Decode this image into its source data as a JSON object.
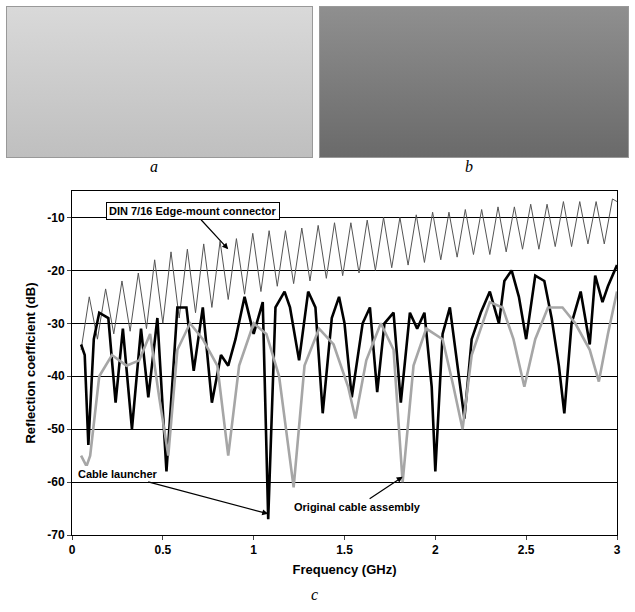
{
  "panels": {
    "photo_labels": [
      "a",
      "b"
    ],
    "chart_label": "c"
  },
  "chart_data": {
    "type": "line",
    "xlabel": "Frequency (GHz)",
    "ylabel": "Reflection coefficient (dB)",
    "xlim": [
      0,
      3
    ],
    "xticks": [
      0,
      0.5,
      1,
      1.5,
      2,
      2.5,
      3
    ],
    "ylim": [
      -70,
      -5
    ],
    "yticks": [
      -70,
      -60,
      -50,
      -40,
      -30,
      -20,
      -10
    ],
    "grid": "y",
    "series": [
      {
        "name": "DIN 7/16 Edge-mount connector",
        "color": "#555555",
        "line_style": "thin",
        "x": [
          0.05,
          0.095,
          0.14,
          0.185,
          0.23,
          0.275,
          0.32,
          0.365,
          0.41,
          0.455,
          0.5,
          0.545,
          0.59,
          0.635,
          0.68,
          0.725,
          0.77,
          0.815,
          0.86,
          0.905,
          0.95,
          0.995,
          1.04,
          1.085,
          1.13,
          1.175,
          1.22,
          1.265,
          1.31,
          1.355,
          1.4,
          1.445,
          1.49,
          1.535,
          1.58,
          1.625,
          1.67,
          1.715,
          1.76,
          1.805,
          1.85,
          1.895,
          1.94,
          1.985,
          2.03,
          2.075,
          2.12,
          2.165,
          2.21,
          2.255,
          2.3,
          2.345,
          2.39,
          2.435,
          2.48,
          2.525,
          2.57,
          2.615,
          2.66,
          2.705,
          2.75,
          2.795,
          2.84,
          2.885,
          2.93,
          2.975,
          3.0
        ],
        "values": [
          -35,
          -25,
          -33,
          -23.5,
          -32,
          -22,
          -31.5,
          -20.5,
          -31,
          -18,
          -30,
          -16.5,
          -29,
          -16,
          -28,
          -15,
          -27,
          -14.5,
          -25.5,
          -14,
          -24.5,
          -13,
          -24,
          -12.5,
          -23,
          -12.5,
          -22.5,
          -12,
          -22,
          -11.5,
          -21.5,
          -11,
          -21,
          -11,
          -20.5,
          -10.5,
          -20,
          -10,
          -19.5,
          -10,
          -19,
          -9.5,
          -18.5,
          -9,
          -18,
          -9,
          -17.5,
          -8.5,
          -17,
          -8.5,
          -17,
          -8,
          -16.5,
          -8,
          -16,
          -7.5,
          -16,
          -7.5,
          -15.5,
          -7,
          -15.5,
          -7,
          -15,
          -7,
          -15,
          -6.5,
          -7
        ]
      },
      {
        "name": "Cable launcher",
        "color": "#000000",
        "line_style": "thick",
        "x": [
          0.05,
          0.07,
          0.09,
          0.12,
          0.15,
          0.2,
          0.24,
          0.28,
          0.33,
          0.38,
          0.42,
          0.47,
          0.52,
          0.58,
          0.63,
          0.67,
          0.72,
          0.77,
          0.82,
          0.86,
          0.9,
          0.95,
          1.0,
          1.05,
          1.08,
          1.12,
          1.17,
          1.2,
          1.25,
          1.3,
          1.34,
          1.38,
          1.43,
          1.47,
          1.5,
          1.54,
          1.6,
          1.64,
          1.68,
          1.72,
          1.77,
          1.81,
          1.86,
          1.9,
          1.94,
          1.98,
          2.0,
          2.04,
          2.08,
          2.12,
          2.16,
          2.2,
          2.25,
          2.3,
          2.35,
          2.38,
          2.42,
          2.46,
          2.5,
          2.55,
          2.6,
          2.64,
          2.68,
          2.71,
          2.75,
          2.8,
          2.85,
          2.88,
          2.92,
          2.95,
          3.0
        ],
        "values": [
          -34,
          -36,
          -53,
          -33,
          -28,
          -29,
          -45,
          -31,
          -50,
          -31,
          -44,
          -29,
          -58,
          -27,
          -27,
          -39,
          -27,
          -45,
          -36,
          -38,
          -33,
          -25,
          -32,
          -26,
          -67,
          -27,
          -24,
          -27,
          -37,
          -24,
          -27,
          -47,
          -29,
          -25,
          -30,
          -44,
          -30,
          -27,
          -43,
          -30,
          -28,
          -45,
          -28,
          -31,
          -28,
          -42,
          -58,
          -32,
          -27,
          -37,
          -48,
          -33,
          -28,
          -24,
          -30,
          -22,
          -20,
          -25,
          -33,
          -21,
          -22,
          -29,
          -38,
          -47,
          -30,
          -24,
          -34,
          -21,
          -26,
          -23,
          -19
        ]
      },
      {
        "name": "Original cable assembly",
        "color": "#a6a6a6",
        "line_style": "thick",
        "x": [
          0.05,
          0.08,
          0.1,
          0.15,
          0.22,
          0.3,
          0.37,
          0.43,
          0.48,
          0.53,
          0.58,
          0.65,
          0.72,
          0.8,
          0.86,
          0.92,
          1.0,
          1.07,
          1.14,
          1.22,
          1.28,
          1.36,
          1.44,
          1.52,
          1.56,
          1.62,
          1.7,
          1.77,
          1.82,
          1.88,
          1.95,
          2.04,
          2.1,
          2.15,
          2.2,
          2.3,
          2.37,
          2.43,
          2.49,
          2.55,
          2.62,
          2.7,
          2.77,
          2.85,
          2.9,
          2.95,
          3.0
        ],
        "values": [
          -55,
          -57,
          -55,
          -40,
          -36,
          -38,
          -37,
          -32,
          -44,
          -55,
          -35,
          -30,
          -33,
          -38,
          -55,
          -38,
          -30,
          -32,
          -40,
          -61,
          -38,
          -31,
          -34,
          -42,
          -48,
          -37,
          -30,
          -35,
          -60,
          -38,
          -31,
          -33,
          -42,
          -50,
          -36,
          -26,
          -27,
          -33,
          -42,
          -33,
          -27,
          -27,
          -30,
          -35,
          -41,
          -32,
          -24
        ]
      }
    ],
    "annotations": [
      {
        "text": "DIN 7/16 Edge-mount connector",
        "x": 0.86,
        "y": -16
      },
      {
        "text": "Cable launcher",
        "x": 1.08,
        "y": -66
      },
      {
        "text": "Original cable assembly",
        "x": 1.82,
        "y": -59
      }
    ]
  }
}
